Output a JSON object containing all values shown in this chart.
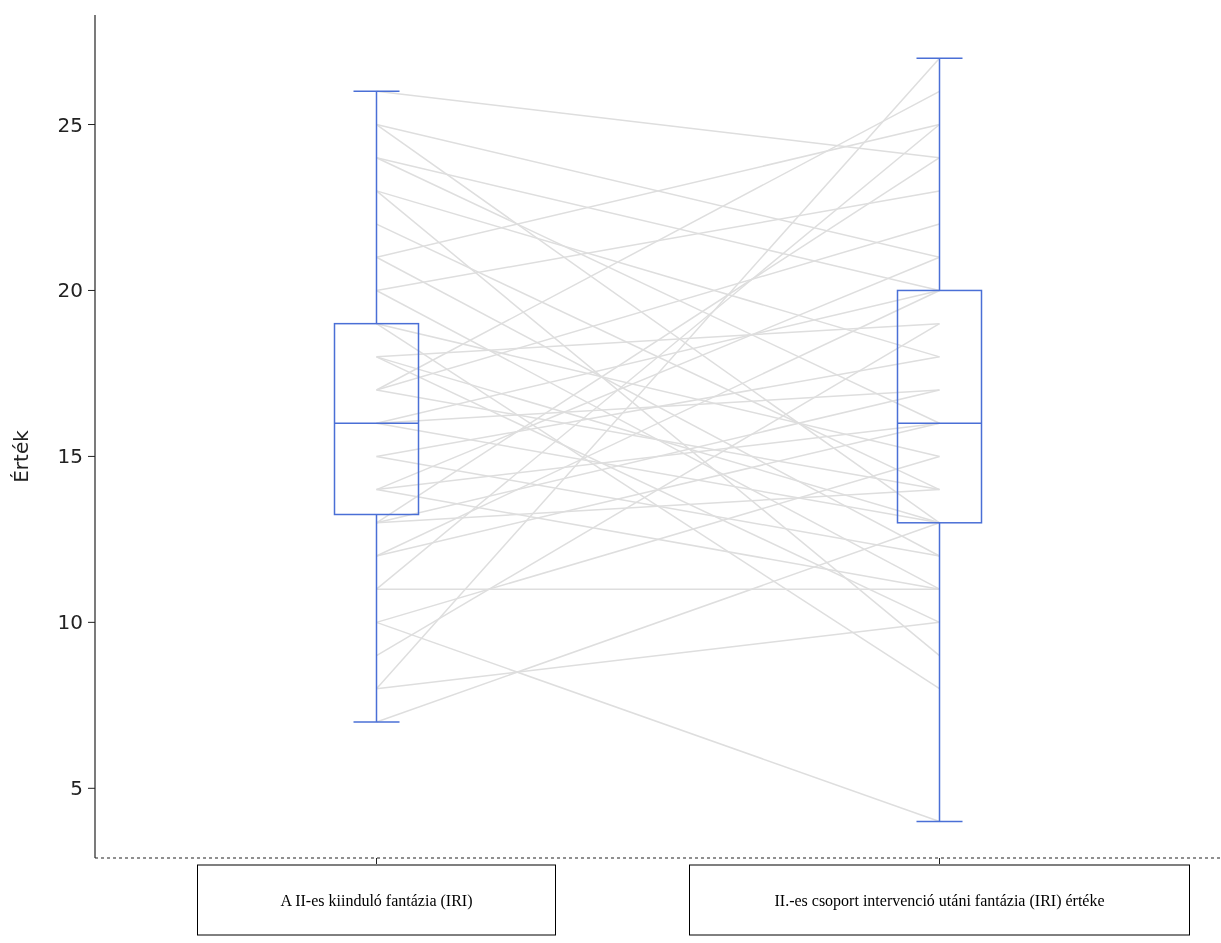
{
  "chart_data": {
    "type": "box",
    "ylabel": "Érték",
    "categories": [
      "A II-es kiinduló fantázia (IRI)",
      "II.-es csoport intervenció utáni fantázia (IRI) értéke"
    ],
    "boxes": [
      {
        "low": 7,
        "q1": 13.25,
        "median": 16,
        "q3": 19,
        "high": 26
      },
      {
        "low": 4,
        "q1": 13,
        "median": 16,
        "q3": 20,
        "high": 27
      }
    ],
    "color": "#4a6fd6",
    "ylim": [
      2.9,
      28.3
    ],
    "yticks": [
      5,
      10,
      15,
      20,
      25
    ],
    "series": [
      {
        "type": "line",
        "color": "#dedede",
        "values": [
          26,
          24
        ]
      },
      {
        "type": "line",
        "color": "#dedede",
        "values": [
          25,
          21
        ]
      },
      {
        "type": "line",
        "color": "#dedede",
        "values": [
          25,
          13
        ]
      },
      {
        "type": "line",
        "color": "#dedede",
        "values": [
          24,
          16
        ]
      },
      {
        "type": "line",
        "color": "#dedede",
        "values": [
          24,
          20
        ]
      },
      {
        "type": "line",
        "color": "#dedede",
        "values": [
          23,
          9
        ]
      },
      {
        "type": "line",
        "color": "#dedede",
        "values": [
          23,
          18
        ]
      },
      {
        "type": "line",
        "color": "#dedede",
        "values": [
          22,
          14
        ]
      },
      {
        "type": "line",
        "color": "#dedede",
        "values": [
          21,
          25
        ]
      },
      {
        "type": "line",
        "color": "#dedede",
        "values": [
          21,
          12
        ]
      },
      {
        "type": "line",
        "color": "#dedede",
        "values": [
          20,
          11
        ]
      },
      {
        "type": "line",
        "color": "#dedede",
        "values": [
          20,
          23
        ]
      },
      {
        "type": "line",
        "color": "#dedede",
        "values": [
          19,
          15
        ]
      },
      {
        "type": "line",
        "color": "#dedede",
        "values": [
          19,
          8
        ]
      },
      {
        "type": "line",
        "color": "#dedede",
        "values": [
          18,
          13
        ]
      },
      {
        "type": "line",
        "color": "#dedede",
        "values": [
          18,
          19
        ]
      },
      {
        "type": "line",
        "color": "#dedede",
        "values": [
          18,
          10
        ]
      },
      {
        "type": "line",
        "color": "#dedede",
        "values": [
          17,
          22
        ]
      },
      {
        "type": "line",
        "color": "#dedede",
        "values": [
          17,
          14
        ]
      },
      {
        "type": "line",
        "color": "#dedede",
        "values": [
          17,
          26
        ]
      },
      {
        "type": "line",
        "color": "#dedede",
        "values": [
          16,
          17
        ]
      },
      {
        "type": "line",
        "color": "#dedede",
        "values": [
          16,
          13
        ]
      },
      {
        "type": "line",
        "color": "#dedede",
        "values": [
          16,
          20
        ]
      },
      {
        "type": "line",
        "color": "#dedede",
        "values": [
          15,
          18
        ]
      },
      {
        "type": "line",
        "color": "#dedede",
        "values": [
          15,
          12
        ]
      },
      {
        "type": "line",
        "color": "#dedede",
        "values": [
          14,
          16
        ]
      },
      {
        "type": "line",
        "color": "#dedede",
        "values": [
          14,
          21
        ]
      },
      {
        "type": "line",
        "color": "#dedede",
        "values": [
          14,
          11
        ]
      },
      {
        "type": "line",
        "color": "#dedede",
        "values": [
          13,
          17
        ]
      },
      {
        "type": "line",
        "color": "#dedede",
        "values": [
          13,
          14
        ]
      },
      {
        "type": "line",
        "color": "#dedede",
        "values": [
          13,
          24
        ]
      },
      {
        "type": "line",
        "color": "#dedede",
        "values": [
          12,
          16
        ]
      },
      {
        "type": "line",
        "color": "#dedede",
        "values": [
          12,
          20
        ]
      },
      {
        "type": "line",
        "color": "#dedede",
        "values": [
          11,
          11
        ]
      },
      {
        "type": "line",
        "color": "#dedede",
        "values": [
          11,
          25
        ]
      },
      {
        "type": "line",
        "color": "#dedede",
        "values": [
          10,
          4
        ]
      },
      {
        "type": "line",
        "color": "#dedede",
        "values": [
          10,
          15
        ]
      },
      {
        "type": "line",
        "color": "#dedede",
        "values": [
          9,
          19
        ]
      },
      {
        "type": "line",
        "color": "#dedede",
        "values": [
          8,
          10
        ]
      },
      {
        "type": "line",
        "color": "#dedede",
        "values": [
          8,
          27
        ]
      },
      {
        "type": "line",
        "color": "#dedede",
        "values": [
          7,
          13
        ]
      }
    ]
  }
}
